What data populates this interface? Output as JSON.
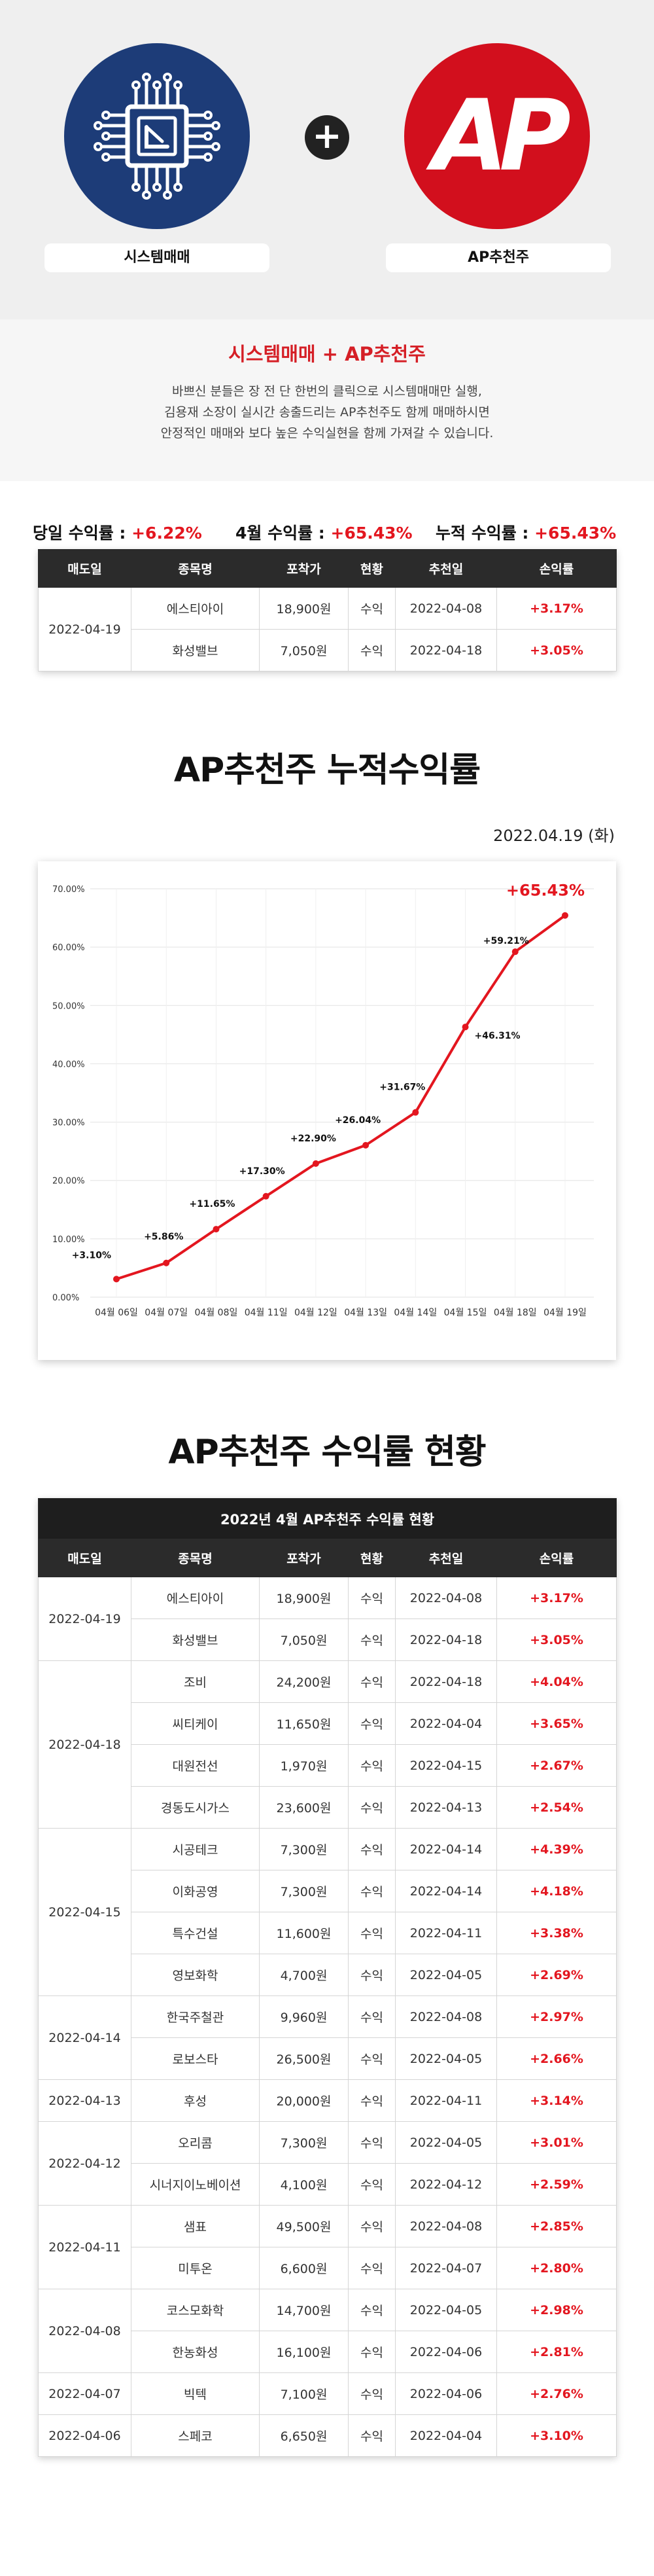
{
  "hero": {
    "left_label": "시스템매매",
    "right_label": "AP추천주",
    "right_logo_text": "AP",
    "plus": "+"
  },
  "intro": {
    "title": "시스템매매 + AP추천주",
    "lines": [
      "바쁘신 분들은 장 전 단 한번의 클릭으로 시스템매매만 실행,",
      "김용재 소장이 실시간 송출드리는 AP추천주도 함께 매매하시면",
      "안정적인 매매와 보다 높은 수익실현을 함께 가져갈 수 있습니다."
    ]
  },
  "summary": {
    "daily_label": "당일 수익률 : ",
    "daily_value": "+6.22%",
    "month_label": "4월 수익률 : ",
    "month_value": "+65.43%",
    "total_label": "누적 수익률 : ",
    "total_value": "+65.43%"
  },
  "columns": [
    "매도일",
    "종목명",
    "포착가",
    "현황",
    "추천일",
    "손익률"
  ],
  "today_table": {
    "groups": [
      {
        "date": "2022-04-19",
        "rows": [
          {
            "name": "에스티아이",
            "price": "18,900원",
            "status": "수익",
            "rec": "2022-04-08",
            "profit": "+3.17%"
          },
          {
            "name": "화성밸브",
            "price": "7,050원",
            "status": "수익",
            "rec": "2022-04-18",
            "profit": "+3.05%"
          }
        ]
      }
    ]
  },
  "chart_section": {
    "title": "AP추천주 누적수익률",
    "date": "2022.04.19 (화)"
  },
  "chart_data": {
    "type": "line",
    "title": "AP추천주 누적수익률",
    "x": [
      "04월 06일",
      "04월 07일",
      "04월 08일",
      "04월 11일",
      "04월 12일",
      "04월 13일",
      "04월 14일",
      "04월 15일",
      "04월 18일",
      "04월 19일"
    ],
    "values": [
      3.1,
      5.86,
      11.65,
      17.3,
      22.9,
      26.04,
      31.67,
      46.31,
      59.21,
      65.43
    ],
    "point_labels": [
      "+3.10%",
      "+5.86%",
      "+11.65%",
      "+17.30%",
      "+22.90%",
      "+26.04%",
      "+31.67%",
      "+46.31%",
      "+59.21%",
      "+65.43%"
    ],
    "y_ticks": [
      "0.00%",
      "10.00%",
      "20.00%",
      "30.00%",
      "40.00%",
      "50.00%",
      "60.00%",
      "70.00%"
    ],
    "ylim": [
      0,
      70
    ],
    "grid": true,
    "line_color": "#e3161f"
  },
  "status_section": {
    "title": "AP추천주 수익률 현황",
    "caption": "2022년 4월 AP추천주 수익률 현황"
  },
  "status_table": {
    "groups": [
      {
        "date": "2022-04-19",
        "rows": [
          {
            "name": "에스티아이",
            "price": "18,900원",
            "status": "수익",
            "rec": "2022-04-08",
            "profit": "+3.17%"
          },
          {
            "name": "화성밸브",
            "price": "7,050원",
            "status": "수익",
            "rec": "2022-04-18",
            "profit": "+3.05%"
          }
        ]
      },
      {
        "date": "2022-04-18",
        "rows": [
          {
            "name": "조비",
            "price": "24,200원",
            "status": "수익",
            "rec": "2022-04-18",
            "profit": "+4.04%"
          },
          {
            "name": "씨티케이",
            "price": "11,650원",
            "status": "수익",
            "rec": "2022-04-04",
            "profit": "+3.65%"
          },
          {
            "name": "대원전선",
            "price": "1,970원",
            "status": "수익",
            "rec": "2022-04-15",
            "profit": "+2.67%"
          },
          {
            "name": "경동도시가스",
            "price": "23,600원",
            "status": "수익",
            "rec": "2022-04-13",
            "profit": "+2.54%"
          }
        ]
      },
      {
        "date": "2022-04-15",
        "rows": [
          {
            "name": "시공테크",
            "price": "7,300원",
            "status": "수익",
            "rec": "2022-04-14",
            "profit": "+4.39%"
          },
          {
            "name": "이화공영",
            "price": "7,300원",
            "status": "수익",
            "rec": "2022-04-14",
            "profit": "+4.18%"
          },
          {
            "name": "특수건설",
            "price": "11,600원",
            "status": "수익",
            "rec": "2022-04-11",
            "profit": "+3.38%"
          },
          {
            "name": "영보화학",
            "price": "4,700원",
            "status": "수익",
            "rec": "2022-04-05",
            "profit": "+2.69%"
          }
        ]
      },
      {
        "date": "2022-04-14",
        "rows": [
          {
            "name": "한국주철관",
            "price": "9,960원",
            "status": "수익",
            "rec": "2022-04-08",
            "profit": "+2.97%"
          },
          {
            "name": "로보스타",
            "price": "26,500원",
            "status": "수익",
            "rec": "2022-04-05",
            "profit": "+2.66%"
          }
        ]
      },
      {
        "date": "2022-04-13",
        "rows": [
          {
            "name": "후성",
            "price": "20,000원",
            "status": "수익",
            "rec": "2022-04-11",
            "profit": "+3.14%"
          }
        ]
      },
      {
        "date": "2022-04-12",
        "rows": [
          {
            "name": "오리콤",
            "price": "7,300원",
            "status": "수익",
            "rec": "2022-04-05",
            "profit": "+3.01%"
          },
          {
            "name": "시너지이노베이션",
            "price": "4,100원",
            "status": "수익",
            "rec": "2022-04-12",
            "profit": "+2.59%"
          }
        ]
      },
      {
        "date": "2022-04-11",
        "rows": [
          {
            "name": "샘표",
            "price": "49,500원",
            "status": "수익",
            "rec": "2022-04-08",
            "profit": "+2.85%"
          },
          {
            "name": "미투온",
            "price": "6,600원",
            "status": "수익",
            "rec": "2022-04-07",
            "profit": "+2.80%"
          }
        ]
      },
      {
        "date": "2022-04-08",
        "rows": [
          {
            "name": "코스모화학",
            "price": "14,700원",
            "status": "수익",
            "rec": "2022-04-05",
            "profit": "+2.98%"
          },
          {
            "name": "한농화성",
            "price": "16,100원",
            "status": "수익",
            "rec": "2022-04-06",
            "profit": "+2.81%"
          }
        ]
      },
      {
        "date": "2022-04-07",
        "rows": [
          {
            "name": "빅텍",
            "price": "7,100원",
            "status": "수익",
            "rec": "2022-04-06",
            "profit": "+2.76%"
          }
        ]
      },
      {
        "date": "2022-04-06",
        "rows": [
          {
            "name": "스페코",
            "price": "6,650원",
            "status": "수익",
            "rec": "2022-04-04",
            "profit": "+3.10%"
          }
        ]
      }
    ]
  },
  "colors": {
    "accent_red": "#e3161f",
    "navy": "#1d3c78",
    "header_dark": "#2b2b2b"
  }
}
